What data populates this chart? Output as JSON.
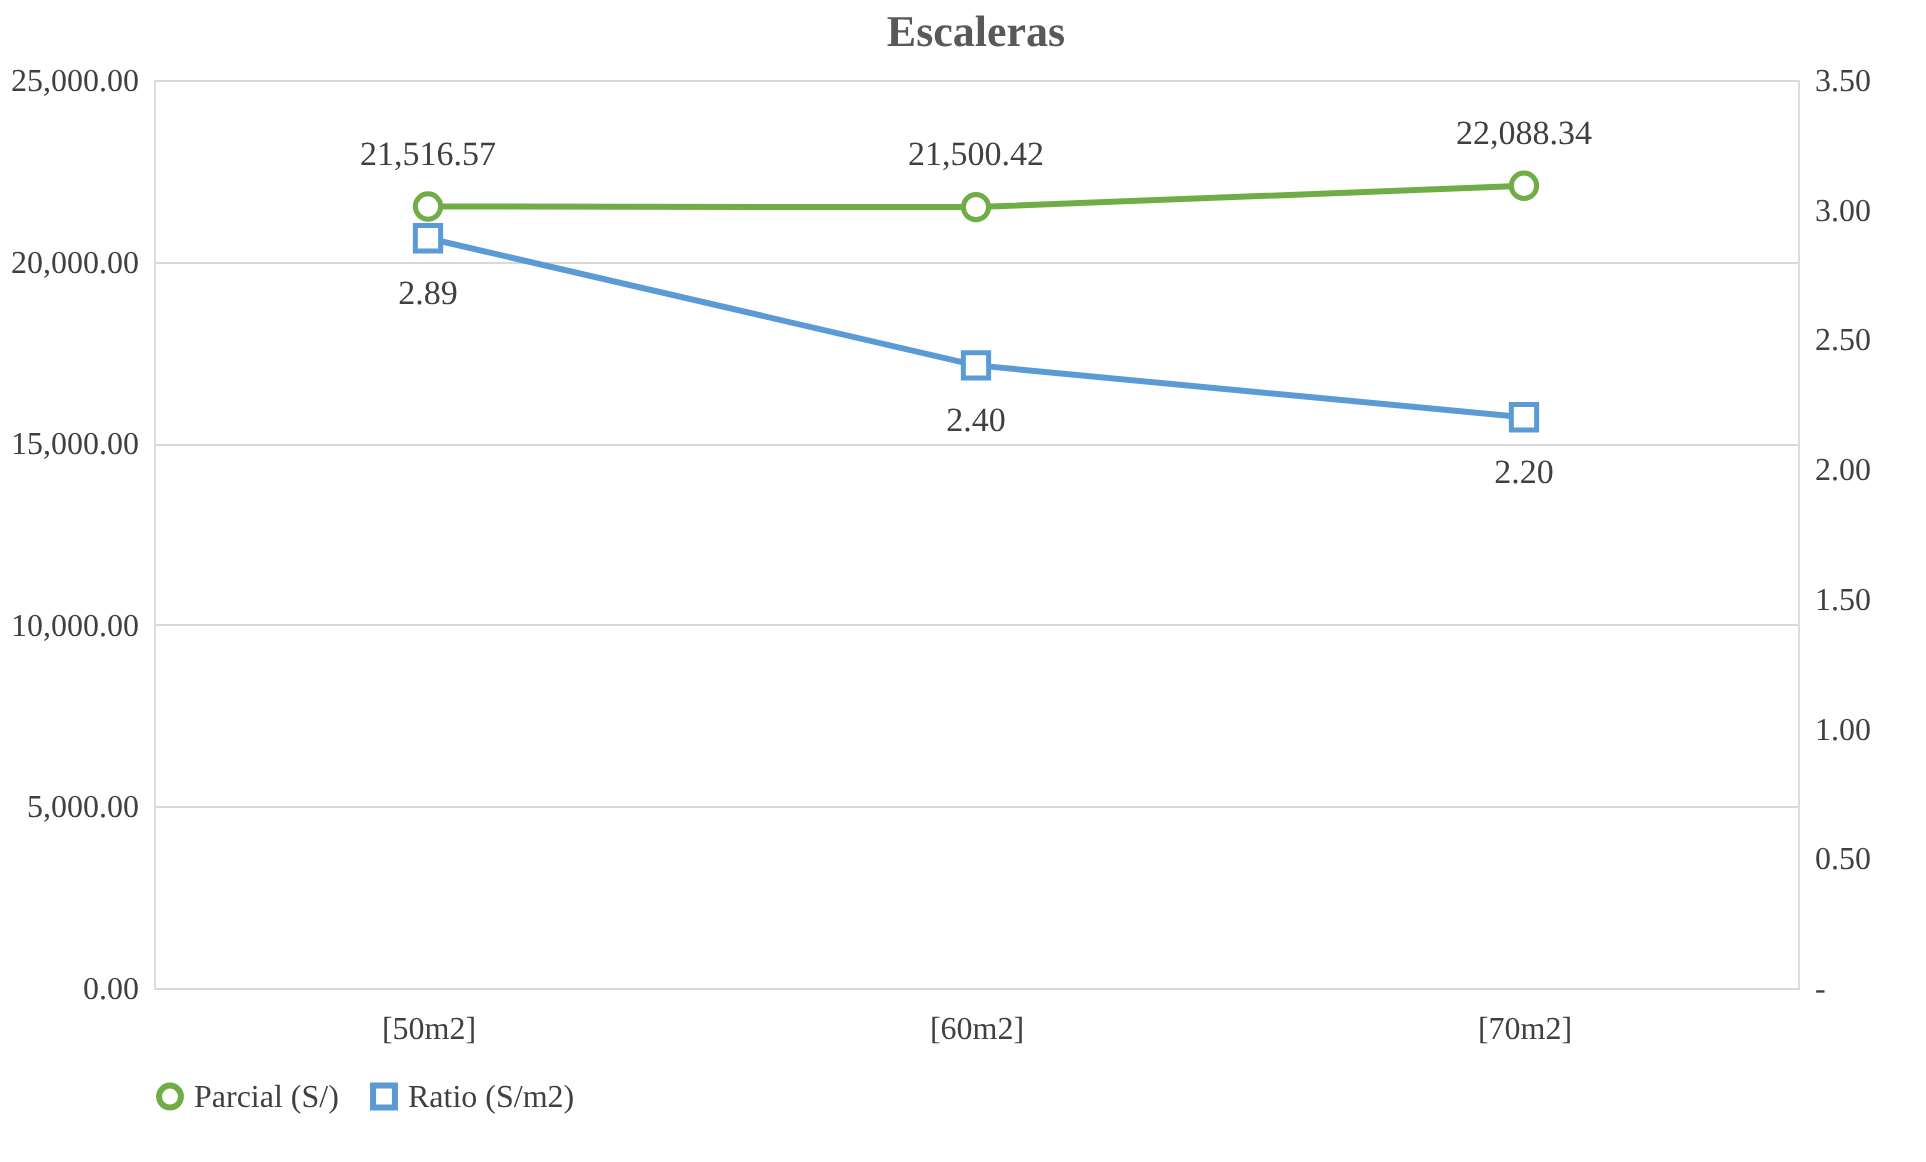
{
  "chart_data": {
    "type": "line",
    "title": "Escaleras",
    "categories": [
      "[50m2]",
      "[60m2]",
      "[70m2]"
    ],
    "series": [
      {
        "name": "Parcial (S/)",
        "color": "#70ad47",
        "values": [
          21516.57,
          21500.42,
          22088.34
        ],
        "marker": "circle",
        "value_labels": [
          "21,516.57",
          "21,500.42",
          "22,088.34"
        ]
      },
      {
        "name": "Ratio (S/m2)",
        "color": "#5b9bd5",
        "values": [
          2.89,
          2.4,
          2.2
        ],
        "axis": "y2",
        "marker": "square",
        "value_labels": [
          "2.89",
          "2.40",
          "2.20"
        ]
      }
    ],
    "ylim": [
      0,
      25000
    ],
    "yticks": [
      {
        "value": 0,
        "label": "0.00"
      },
      {
        "value": 5000,
        "label": "5,000.00"
      },
      {
        "value": 10000,
        "label": "10,000.00"
      },
      {
        "value": 15000,
        "label": "15,000.00"
      },
      {
        "value": 20000,
        "label": "20,000.00"
      },
      {
        "value": 25000,
        "label": "25,000.00"
      }
    ],
    "y2lim": [
      0,
      3.5
    ],
    "y2ticks": [
      {
        "value": 0,
        "label": "-"
      },
      {
        "value": 0.5,
        "label": "0.50"
      },
      {
        "value": 1,
        "label": "1.00"
      },
      {
        "value": 1.5,
        "label": "1.50"
      },
      {
        "value": 2,
        "label": "2.00"
      },
      {
        "value": 2.5,
        "label": "2.50"
      },
      {
        "value": 3,
        "label": "3.00"
      },
      {
        "value": 3.5,
        "label": "3.50"
      }
    ],
    "grid": "y",
    "legend": "bottom",
    "line_style": "solid"
  }
}
